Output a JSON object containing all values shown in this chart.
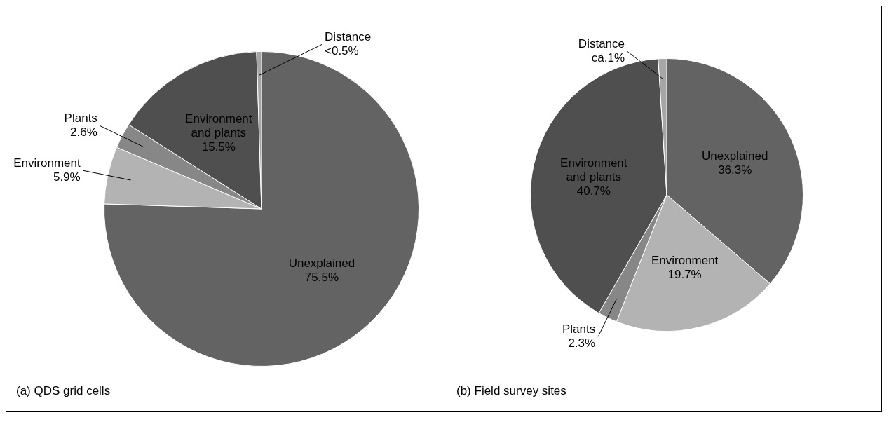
{
  "chart_data": [
    {
      "type": "pie",
      "categories": [
        "Unexplained",
        "Environment",
        "Plants",
        "Environment and plants",
        "Distance"
      ],
      "values": [
        75.5,
        5.9,
        2.6,
        15.5,
        0.5
      ],
      "colors": [
        "#636363",
        "#b3b3b3",
        "#878787",
        "#4f4f4f",
        "#a6a6a6"
      ],
      "value_labels": [
        "75.5%",
        "5.9%",
        "2.6%",
        "15.5%",
        "<0.5%"
      ],
      "legend": false,
      "annotations": [
        "(a) QDS grid cells"
      ]
    },
    {
      "type": "pie",
      "categories": [
        "Unexplained",
        "Environment",
        "Plants",
        "Environment and plants",
        "Distance"
      ],
      "values": [
        36.3,
        19.7,
        2.3,
        40.7,
        1.0
      ],
      "colors": [
        "#636363",
        "#b3b3b3",
        "#878787",
        "#4f4f4f",
        "#a6a6a6"
      ],
      "value_labels": [
        "36.3%",
        "19.7%",
        "2.3%",
        "40.7%",
        "ca.1%"
      ],
      "legend": false,
      "annotations": [
        "(b) Field survey sites"
      ]
    }
  ]
}
